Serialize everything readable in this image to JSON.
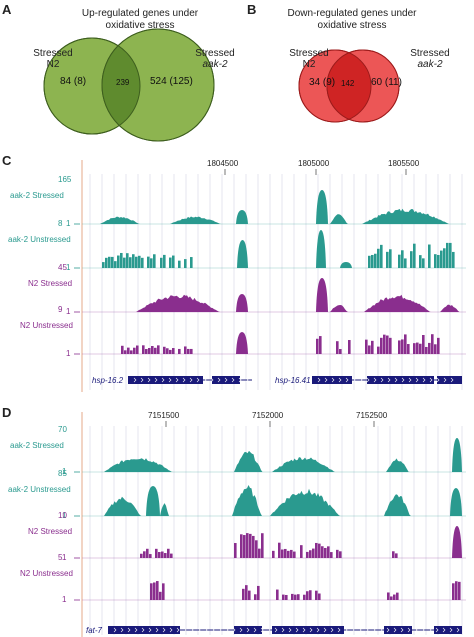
{
  "panels": {
    "A": {
      "letter": "A",
      "title_line1": "Up-regulated genes under",
      "title_line2": "oxidative stress",
      "left_label_line1": "Stressed",
      "left_label_line2": "N2",
      "right_label_line1": "Stressed",
      "right_label_line2": "aak-2",
      "left_only": "84 (8)",
      "overlap": "239",
      "right_only": "524 (125)",
      "colors": {
        "fill": "#8db450",
        "overlap": "#5f8b2e",
        "stroke": "#3d5e1e"
      }
    },
    "B": {
      "letter": "B",
      "title_line1": "Down-regulated genes under",
      "title_line2": "oxidative stress",
      "left_label_line1": "Stressed",
      "left_label_line2": "N2",
      "right_label_line1": "Stressed",
      "right_label_line2": "aak-2",
      "left_only": "34 (9)",
      "overlap": "142",
      "right_only": "60 (11)",
      "colors": {
        "fill": "#ec5656",
        "overlap": "#cf2424",
        "stroke": "#9c1b1b"
      }
    },
    "C": {
      "letter": "C",
      "coords": [
        "1804500",
        "1805000",
        "1805500"
      ],
      "tracks": [
        {
          "name": "aak-2 Stressed",
          "max": "165",
          "min": "1",
          "color": "#2a9a8f"
        },
        {
          "name": "aak-2 Unstressed",
          "max": "8",
          "min": "1",
          "color": "#2a9a8f"
        },
        {
          "name": "N2 Stressed",
          "max": "45",
          "min": "1",
          "color": "#8a2e8e"
        },
        {
          "name": "N2 Unstressed",
          "max": "9",
          "min": "1",
          "color": "#8a2e8e"
        }
      ],
      "genes": [
        "hsp-16.2",
        "hsp-16.41"
      ]
    },
    "D": {
      "letter": "D",
      "coords": [
        "7151500",
        "7152000",
        "7152500"
      ],
      "tracks": [
        {
          "name": "aak-2 Stressed",
          "max": "70",
          "min": "1",
          "color": "#2a9a8f"
        },
        {
          "name": "aak-2 Unstressed",
          "max": "85",
          "min": "1",
          "color": "#2a9a8f"
        },
        {
          "name": "N2 Stressed",
          "max": "10",
          "min": "1",
          "color": "#8a2e8e"
        },
        {
          "name": "N2 Unstressed",
          "max": "5",
          "min": "1",
          "color": "#8a2e8e"
        }
      ],
      "genes": [
        "fat-7"
      ]
    }
  }
}
